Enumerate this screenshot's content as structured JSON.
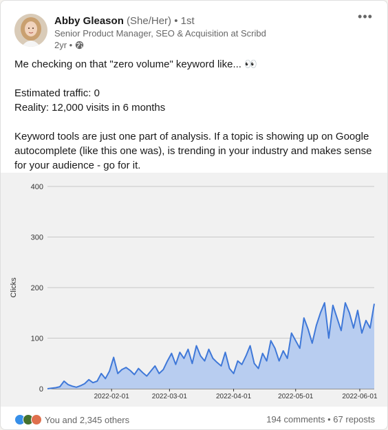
{
  "post": {
    "author_name": "Abby Gleason",
    "pronouns": "(She/Her)",
    "connection": "• 1st",
    "headline": "Senior Product Manager, SEO & Acquisition at Scribd",
    "age": "2yr •",
    "more_icon": "more-horizontal-icon",
    "visibility_icon": "globe-icon",
    "text_lines": [
      "Me checking on that \"zero volume\" keyword like... 👀",
      "",
      "Estimated traffic: 0",
      "Reality: 12,000 visits in 6 months",
      "",
      "Keyword tools are just one part of analysis. If a topic is showing up on Google autocomplete (like this one was), is trending in your industry and makes sense for your audience - go for it."
    ]
  },
  "footer": {
    "reactions_text": "You and 2,345 others",
    "reaction_icons": [
      "like-icon",
      "celebrate-icon",
      "love-icon"
    ],
    "comments": "194 comments",
    "separator": "•",
    "reposts": "67 reposts"
  },
  "colors": {
    "line": "#3f78d8",
    "fill": "#b8cdf0",
    "like": "#378fe9",
    "celebrate": "#44712e",
    "love": "#df704d"
  },
  "chart_data": {
    "type": "area",
    "ylabel": "Clicks",
    "ylim": [
      0,
      400
    ],
    "yticks": [
      0,
      100,
      200,
      300,
      400
    ],
    "xlim": [
      "2022-01-01",
      "2022-06-08"
    ],
    "xticks": [
      "2022-02-01",
      "2022-03-01",
      "2022-04-01",
      "2022-05-01",
      "2022-06-01"
    ],
    "grid": true,
    "x": [
      "2022-01-01",
      "2022-01-03",
      "2022-01-05",
      "2022-01-07",
      "2022-01-09",
      "2022-01-11",
      "2022-01-13",
      "2022-01-15",
      "2022-01-17",
      "2022-01-19",
      "2022-01-21",
      "2022-01-23",
      "2022-01-25",
      "2022-01-27",
      "2022-01-29",
      "2022-01-31",
      "2022-02-02",
      "2022-02-04",
      "2022-02-06",
      "2022-02-08",
      "2022-02-10",
      "2022-02-12",
      "2022-02-14",
      "2022-02-16",
      "2022-02-18",
      "2022-02-20",
      "2022-02-22",
      "2022-02-24",
      "2022-02-26",
      "2022-02-28",
      "2022-03-02",
      "2022-03-04",
      "2022-03-06",
      "2022-03-08",
      "2022-03-10",
      "2022-03-12",
      "2022-03-14",
      "2022-03-16",
      "2022-03-18",
      "2022-03-20",
      "2022-03-22",
      "2022-03-24",
      "2022-03-26",
      "2022-03-28",
      "2022-03-30",
      "2022-04-01",
      "2022-04-03",
      "2022-04-05",
      "2022-04-07",
      "2022-04-09",
      "2022-04-11",
      "2022-04-13",
      "2022-04-15",
      "2022-04-17",
      "2022-04-19",
      "2022-04-21",
      "2022-04-23",
      "2022-04-25",
      "2022-04-27",
      "2022-04-29",
      "2022-05-01",
      "2022-05-03",
      "2022-05-05",
      "2022-05-07",
      "2022-05-09",
      "2022-05-11",
      "2022-05-13",
      "2022-05-15",
      "2022-05-17",
      "2022-05-19",
      "2022-05-21",
      "2022-05-23",
      "2022-05-25",
      "2022-05-27",
      "2022-05-29",
      "2022-05-31",
      "2022-06-02",
      "2022-06-04",
      "2022-06-06",
      "2022-06-08"
    ],
    "values": [
      0,
      1,
      2,
      4,
      15,
      8,
      5,
      3,
      6,
      10,
      18,
      12,
      15,
      30,
      20,
      35,
      62,
      30,
      38,
      42,
      36,
      28,
      40,
      32,
      25,
      35,
      45,
      30,
      38,
      55,
      70,
      48,
      72,
      60,
      78,
      50,
      85,
      65,
      55,
      78,
      60,
      52,
      45,
      72,
      40,
      30,
      55,
      48,
      65,
      85,
      50,
      40,
      70,
      55,
      95,
      80,
      55,
      75,
      60,
      110,
      95,
      80,
      140,
      118,
      90,
      125,
      150,
      170,
      100,
      165,
      140,
      115,
      170,
      150,
      120,
      155,
      110,
      135,
      120,
      168
    ]
  }
}
